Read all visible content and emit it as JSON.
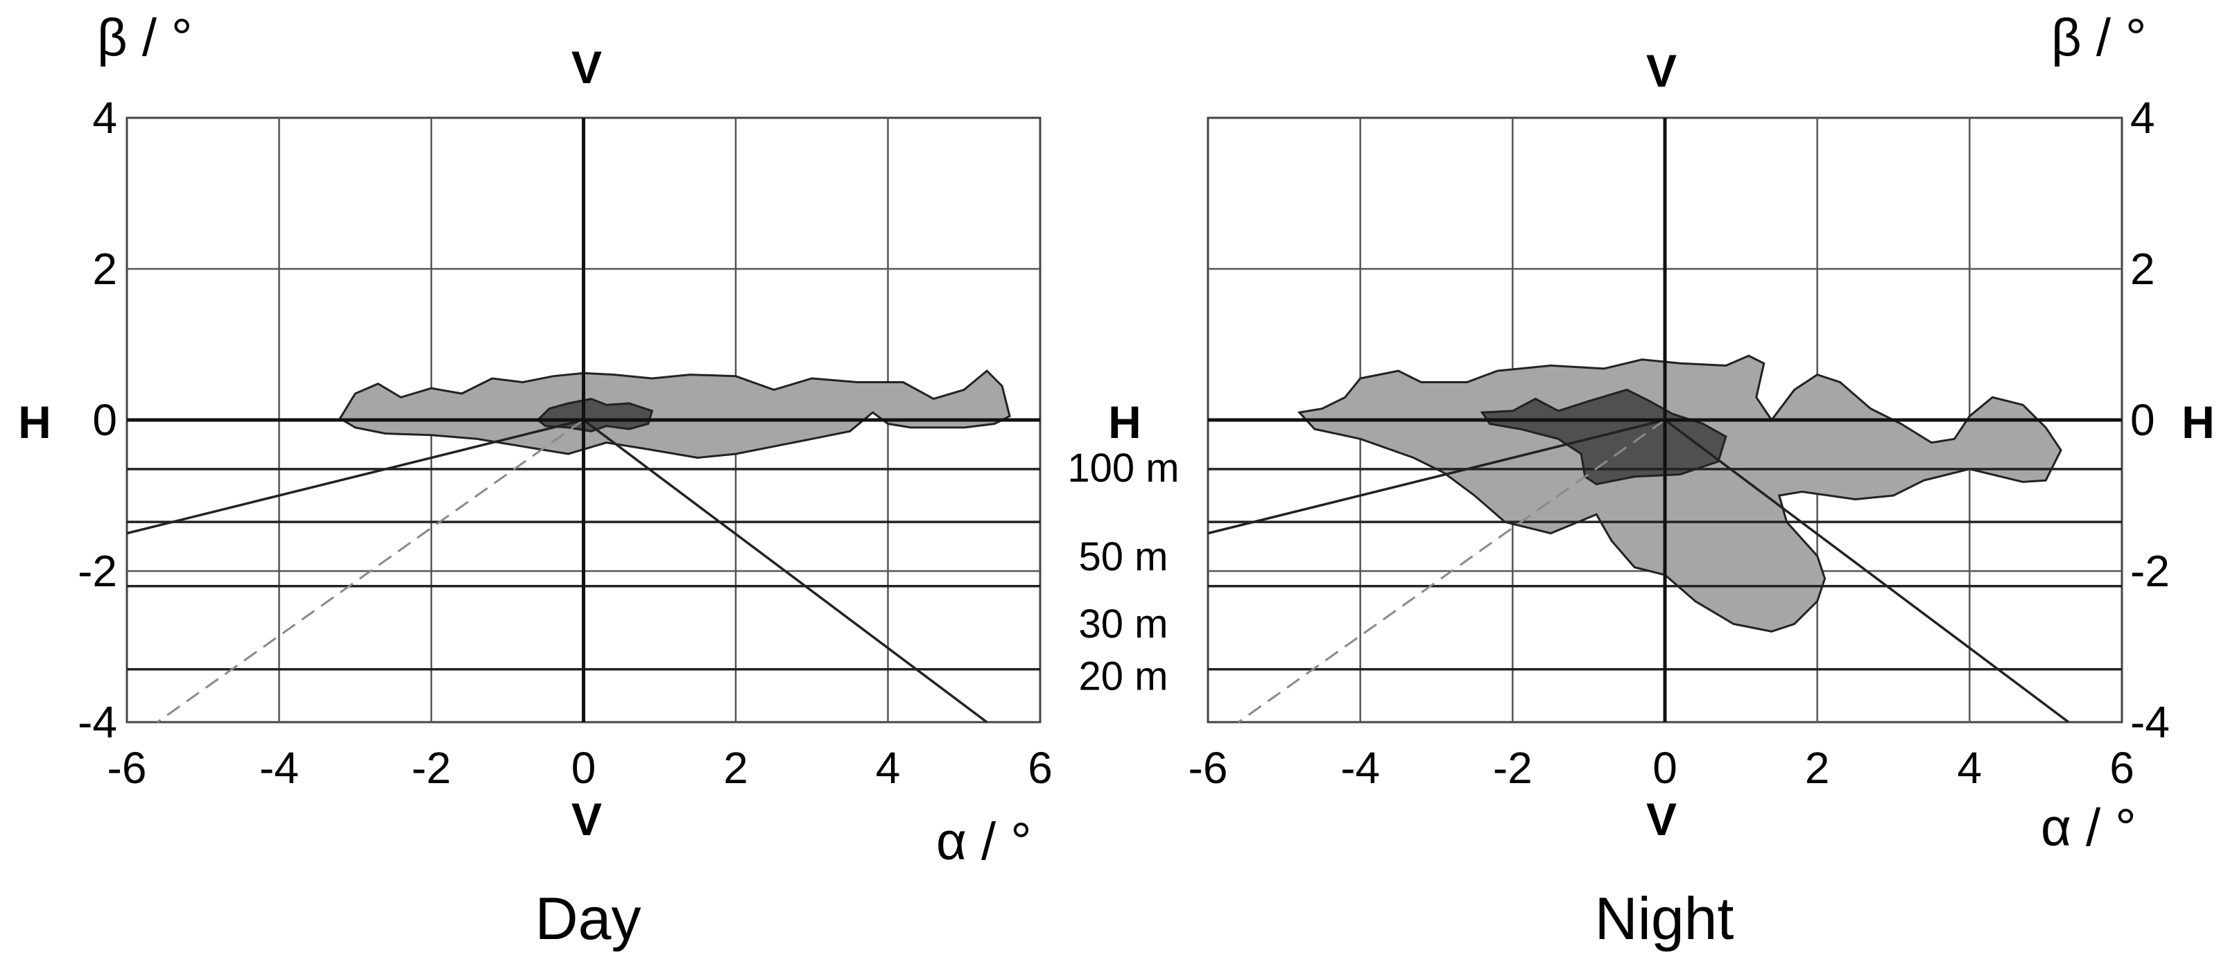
{
  "chart_data": [
    {
      "type": "area",
      "title": "Day",
      "xlabel": "α / °",
      "ylabel": "β / °",
      "xlim": [
        -6,
        6
      ],
      "ylim": [
        -4,
        4
      ],
      "xticks": [
        -6,
        -4,
        -2,
        0,
        2,
        4,
        6
      ],
      "yticks": [
        -4,
        -2,
        0,
        2,
        4
      ],
      "tick_labels_x": [
        "-6",
        "-4",
        "-2",
        "0",
        "2",
        "4",
        "6"
      ],
      "tick_labels_y": [
        "-4",
        "-2",
        "0",
        "2",
        "4"
      ],
      "grid": true,
      "v_labels": [
        "V",
        "V"
      ],
      "h_labels": [
        "H",
        "H"
      ],
      "distance_lines": [
        {
          "label": "100 m",
          "y": -0.65
        },
        {
          "label": "50 m",
          "y": -1.35
        },
        {
          "label": "30 m",
          "y": -2.2
        },
        {
          "label": "20 m",
          "y": -3.3
        }
      ],
      "reference_lines": [
        {
          "style": "solid",
          "from": [
            0,
            0
          ],
          "to": [
            -6,
            -1.5
          ]
        },
        {
          "style": "solid",
          "from": [
            0,
            0
          ],
          "to": [
            5.3,
            -4
          ]
        },
        {
          "style": "dashed",
          "from": [
            0,
            0
          ],
          "to": [
            -5.6,
            -4
          ]
        }
      ],
      "regions": [
        {
          "shade": "light",
          "color": "#a6a6a6",
          "points": [
            [
              -3.2,
              0.02
            ],
            [
              -3.0,
              0.35
            ],
            [
              -2.7,
              0.48
            ],
            [
              -2.4,
              0.3
            ],
            [
              -2.0,
              0.42
            ],
            [
              -1.6,
              0.35
            ],
            [
              -1.2,
              0.55
            ],
            [
              -0.8,
              0.5
            ],
            [
              -0.4,
              0.58
            ],
            [
              0.0,
              0.62
            ],
            [
              0.4,
              0.6
            ],
            [
              0.9,
              0.55
            ],
            [
              1.4,
              0.6
            ],
            [
              2.0,
              0.58
            ],
            [
              2.5,
              0.4
            ],
            [
              3.0,
              0.55
            ],
            [
              3.6,
              0.5
            ],
            [
              4.2,
              0.5
            ],
            [
              4.6,
              0.28
            ],
            [
              5.0,
              0.4
            ],
            [
              5.3,
              0.65
            ],
            [
              5.5,
              0.45
            ],
            [
              5.6,
              0.05
            ],
            [
              5.4,
              -0.05
            ],
            [
              5.0,
              -0.1
            ],
            [
              4.3,
              -0.1
            ],
            [
              4.0,
              -0.05
            ],
            [
              3.8,
              0.1
            ],
            [
              3.5,
              -0.15
            ],
            [
              3.0,
              -0.25
            ],
            [
              2.0,
              -0.45
            ],
            [
              1.5,
              -0.5
            ],
            [
              0.8,
              -0.38
            ],
            [
              0.3,
              -0.3
            ],
            [
              -0.2,
              -0.45
            ],
            [
              -0.8,
              -0.35
            ],
            [
              -1.4,
              -0.25
            ],
            [
              -2.0,
              -0.2
            ],
            [
              -2.6,
              -0.18
            ],
            [
              -3.0,
              -0.1
            ]
          ]
        },
        {
          "shade": "dark",
          "color": "#505050",
          "points": [
            [
              -0.6,
              0.0
            ],
            [
              -0.45,
              0.15
            ],
            [
              -0.2,
              0.22
            ],
            [
              0.1,
              0.28
            ],
            [
              0.3,
              0.2
            ],
            [
              0.6,
              0.22
            ],
            [
              0.9,
              0.12
            ],
            [
              0.85,
              -0.05
            ],
            [
              0.6,
              -0.12
            ],
            [
              0.3,
              -0.08
            ],
            [
              0.1,
              -0.15
            ],
            [
              -0.2,
              -0.1
            ],
            [
              -0.5,
              -0.08
            ]
          ]
        }
      ]
    },
    {
      "type": "area",
      "title": "Night",
      "xlabel": "α / °",
      "ylabel": "β / °",
      "xlim": [
        -6,
        6
      ],
      "ylim": [
        -4,
        4
      ],
      "xticks": [
        -6,
        -4,
        -2,
        0,
        2,
        4,
        6
      ],
      "yticks": [
        -4,
        -2,
        0,
        2,
        4
      ],
      "tick_labels_x": [
        "-6",
        "-4",
        "-2",
        "0",
        "2",
        "4",
        "6"
      ],
      "tick_labels_y": [
        "-4",
        "-2",
        "0",
        "2",
        "4"
      ],
      "grid": true,
      "v_labels": [
        "V",
        "V"
      ],
      "h_labels": [
        "H",
        "H"
      ],
      "distance_lines": [
        {
          "label": "100 m",
          "y": -0.65
        },
        {
          "label": "50 m",
          "y": -1.35
        },
        {
          "label": "30 m",
          "y": -2.2
        },
        {
          "label": "20 m",
          "y": -3.3
        }
      ],
      "reference_lines": [
        {
          "style": "solid",
          "from": [
            0,
            0
          ],
          "to": [
            -6,
            -1.5
          ]
        },
        {
          "style": "solid",
          "from": [
            0,
            0
          ],
          "to": [
            5.3,
            -4
          ]
        },
        {
          "style": "dashed",
          "from": [
            0,
            0
          ],
          "to": [
            -5.6,
            -4
          ]
        }
      ],
      "regions": [
        {
          "shade": "light",
          "color": "#a6a6a6",
          "points": [
            [
              -4.8,
              0.1
            ],
            [
              -4.5,
              0.15
            ],
            [
              -4.2,
              0.3
            ],
            [
              -4.0,
              0.55
            ],
            [
              -3.5,
              0.65
            ],
            [
              -3.2,
              0.5
            ],
            [
              -2.6,
              0.5
            ],
            [
              -2.2,
              0.65
            ],
            [
              -1.5,
              0.72
            ],
            [
              -0.8,
              0.68
            ],
            [
              -0.3,
              0.8
            ],
            [
              0.2,
              0.75
            ],
            [
              0.8,
              0.72
            ],
            [
              1.1,
              0.85
            ],
            [
              1.3,
              0.75
            ],
            [
              1.2,
              0.3
            ],
            [
              1.4,
              0.0
            ],
            [
              1.7,
              0.4
            ],
            [
              2.0,
              0.6
            ],
            [
              2.3,
              0.5
            ],
            [
              2.7,
              0.15
            ],
            [
              3.1,
              -0.05
            ],
            [
              3.5,
              -0.3
            ],
            [
              3.8,
              -0.25
            ],
            [
              4.0,
              0.05
            ],
            [
              4.3,
              0.3
            ],
            [
              4.7,
              0.2
            ],
            [
              5.0,
              -0.1
            ],
            [
              5.2,
              -0.4
            ],
            [
              5.0,
              -0.8
            ],
            [
              4.7,
              -0.82
            ],
            [
              4.0,
              -0.65
            ],
            [
              3.4,
              -0.8
            ],
            [
              3.0,
              -1.0
            ],
            [
              2.5,
              -1.05
            ],
            [
              1.8,
              -0.95
            ],
            [
              1.5,
              -1.0
            ],
            [
              1.6,
              -1.35
            ],
            [
              2.0,
              -1.8
            ],
            [
              2.1,
              -2.1
            ],
            [
              2.0,
              -2.4
            ],
            [
              1.7,
              -2.7
            ],
            [
              1.4,
              -2.8
            ],
            [
              0.9,
              -2.7
            ],
            [
              0.4,
              -2.4
            ],
            [
              0.0,
              -2.05
            ],
            [
              -0.4,
              -1.95
            ],
            [
              -0.7,
              -1.6
            ],
            [
              -0.9,
              -1.25
            ],
            [
              -1.5,
              -1.5
            ],
            [
              -2.1,
              -1.35
            ],
            [
              -2.5,
              -1.0
            ],
            [
              -2.9,
              -0.7
            ],
            [
              -3.3,
              -0.5
            ],
            [
              -4.0,
              -0.25
            ],
            [
              -4.6,
              -0.12
            ]
          ]
        },
        {
          "shade": "dark",
          "color": "#505050",
          "points": [
            [
              -2.4,
              0.1
            ],
            [
              -2.0,
              0.12
            ],
            [
              -1.7,
              0.28
            ],
            [
              -1.4,
              0.12
            ],
            [
              -1.0,
              0.25
            ],
            [
              -0.5,
              0.4
            ],
            [
              -0.2,
              0.25
            ],
            [
              0.1,
              0.08
            ],
            [
              0.5,
              -0.05
            ],
            [
              0.8,
              -0.22
            ],
            [
              0.7,
              -0.55
            ],
            [
              0.2,
              -0.72
            ],
            [
              -0.4,
              -0.75
            ],
            [
              -0.9,
              -0.85
            ],
            [
              -1.05,
              -0.75
            ],
            [
              -1.1,
              -0.45
            ],
            [
              -1.4,
              -0.25
            ],
            [
              -1.9,
              -0.12
            ],
            [
              -2.3,
              -0.05
            ]
          ]
        }
      ]
    }
  ]
}
